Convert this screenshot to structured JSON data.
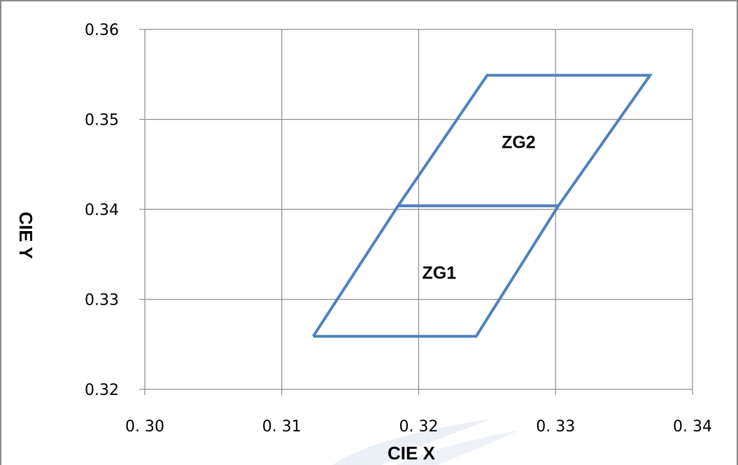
{
  "chart_data": {
    "type": "line",
    "title": "",
    "xlabel": "CIE X",
    "ylabel": "CIE Y",
    "xlim": [
      0.3,
      0.34
    ],
    "ylim": [
      0.32,
      0.36
    ],
    "x_ticks": [
      0.3,
      0.31,
      0.32,
      0.33,
      0.34
    ],
    "y_ticks": [
      0.32,
      0.33,
      0.34,
      0.35,
      0.36
    ],
    "x_tick_labels": [
      "0. 30",
      "0. 31",
      "0. 32",
      "0. 33",
      "0. 34"
    ],
    "y_tick_labels": [
      "0.32",
      "0.33",
      "0.34",
      "0.35",
      "0.36"
    ],
    "grid": true,
    "legend": "none",
    "series": [
      {
        "name": "ZG1",
        "color": "#4f81bd",
        "points": [
          {
            "x": 0.3123,
            "y": 0.3259
          },
          {
            "x": 0.3242,
            "y": 0.3259
          },
          {
            "x": 0.3302,
            "y": 0.3404
          },
          {
            "x": 0.3185,
            "y": 0.3404
          },
          {
            "x": 0.3123,
            "y": 0.3259
          }
        ]
      },
      {
        "name": "ZG2",
        "color": "#4f81bd",
        "points": [
          {
            "x": 0.3185,
            "y": 0.3404
          },
          {
            "x": 0.3302,
            "y": 0.3404
          },
          {
            "x": 0.3369,
            "y": 0.3549
          },
          {
            "x": 0.325,
            "y": 0.3549
          },
          {
            "x": 0.3185,
            "y": 0.3404
          }
        ]
      }
    ],
    "annotations": [
      {
        "text": "ZG1",
        "x": 0.3215,
        "y": 0.333
      },
      {
        "text": "ZG2",
        "x": 0.3273,
        "y": 0.3475
      }
    ]
  }
}
